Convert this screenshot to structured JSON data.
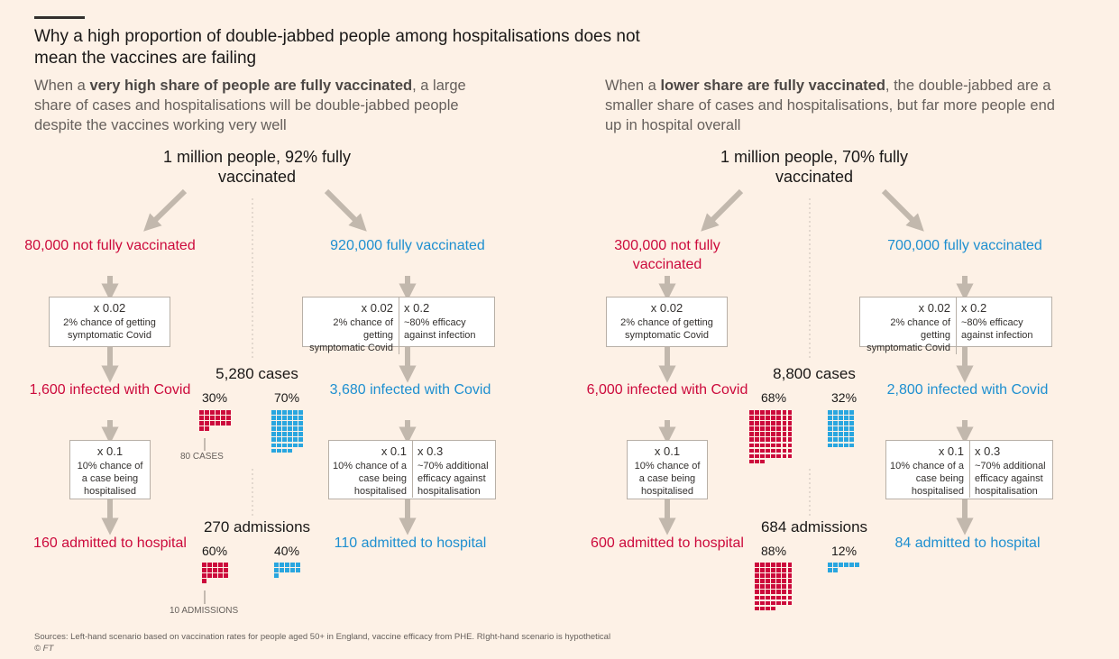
{
  "title": "Why a high proportion of double-jabbed people among hospitalisations does not mean the vaccines are failing",
  "left": {
    "sub_pre": "When a ",
    "sub_bold": "very high share of people are fully vaccinated",
    "sub_post": ", a large share of cases and hospitalisations will be double-jabbed people despite the vaccines working very well",
    "population": "1 million people, 92% fully vaccinated",
    "not_vacc": {
      "group": "80,000 not fully vaccinated",
      "m1": "x 0.02",
      "d1": "2% chance of getting symptomatic Covid",
      "infected": "1,600 infected with Covid",
      "m2": "x 0.1",
      "d2": "10% chance of a case being hospitalised",
      "admitted": "160 admitted to hospital"
    },
    "vacc": {
      "group": "920,000 fully vaccinated",
      "m1a": "x 0.02",
      "d1a": "2% chance of getting symptomatic Covid",
      "m1b": "x 0.2",
      "d1b": "~80% efficacy against infection",
      "infected": "3,680 infected with Covid",
      "m2a": "x 0.1",
      "d2a": "10% chance of a case being hospitalised",
      "m2b": "x 0.3",
      "d2b": "~70% additional efficacy against hospitalisation",
      "admitted": "110 admitted to hospital"
    },
    "cases_header": "5,280 cases",
    "cases_unvacc_pct": "30%",
    "cases_vacc_pct": "70%",
    "cases_note": "80 CASES",
    "adm_header": "270 admissions",
    "adm_unvacc_pct": "60%",
    "adm_vacc_pct": "40%",
    "adm_note": "10 ADMISSIONS"
  },
  "right": {
    "sub_pre": "When a ",
    "sub_bold": "lower share are fully vaccinated",
    "sub_post": ", the double-jabbed are a smaller share of cases and hospitalisations, but far more people end up in hospital overall",
    "population": "1 million people, 70% fully vaccinated",
    "not_vacc": {
      "group": "300,000 not fully vaccinated",
      "m1": "x 0.02",
      "d1": "2% chance of getting symptomatic Covid",
      "infected": "6,000 infected with Covid",
      "m2": "x 0.1",
      "d2": "10% chance of a case being hospitalised",
      "admitted": "600 admitted to hospital"
    },
    "vacc": {
      "group": "700,000 fully vaccinated",
      "m1a": "x 0.02",
      "d1a": "2% chance of getting symptomatic Covid",
      "m1b": "x 0.2",
      "d1b": "~80% efficacy against infection",
      "infected": "2,800 infected with Covid",
      "m2a": "x 0.1",
      "d2a": "10% chance of a case being hospitalised",
      "m2b": "x 0.3",
      "d2b": "~70% additional efficacy against hospitalisation",
      "admitted": "84 admitted to hospital"
    },
    "cases_header": "8,800 cases",
    "cases_unvacc_pct": "68%",
    "cases_vacc_pct": "32%",
    "adm_header": "684 admissions",
    "adm_unvacc_pct": "88%",
    "adm_vacc_pct": "12%"
  },
  "waffles": {
    "left_cases_unvacc": 20,
    "left_cases_vacc": 46,
    "left_adm_unvacc": 16,
    "left_adm_vacc": 11,
    "right_cases_unvacc": 75,
    "right_cases_vacc": 35,
    "right_adm_unvacc": 60,
    "right_adm_vacc": 8
  },
  "colors": {
    "unvaccinated": "#cc0a3c",
    "vaccinated": "#29a6df",
    "arrow": "#c2b8ad"
  },
  "source": "Sources: Left-hand scenario based on vaccination rates for people aged 50+ in England, vaccine efficacy from PHE. RIght-hand scenario is hypothetical",
  "credit": "© FT"
}
